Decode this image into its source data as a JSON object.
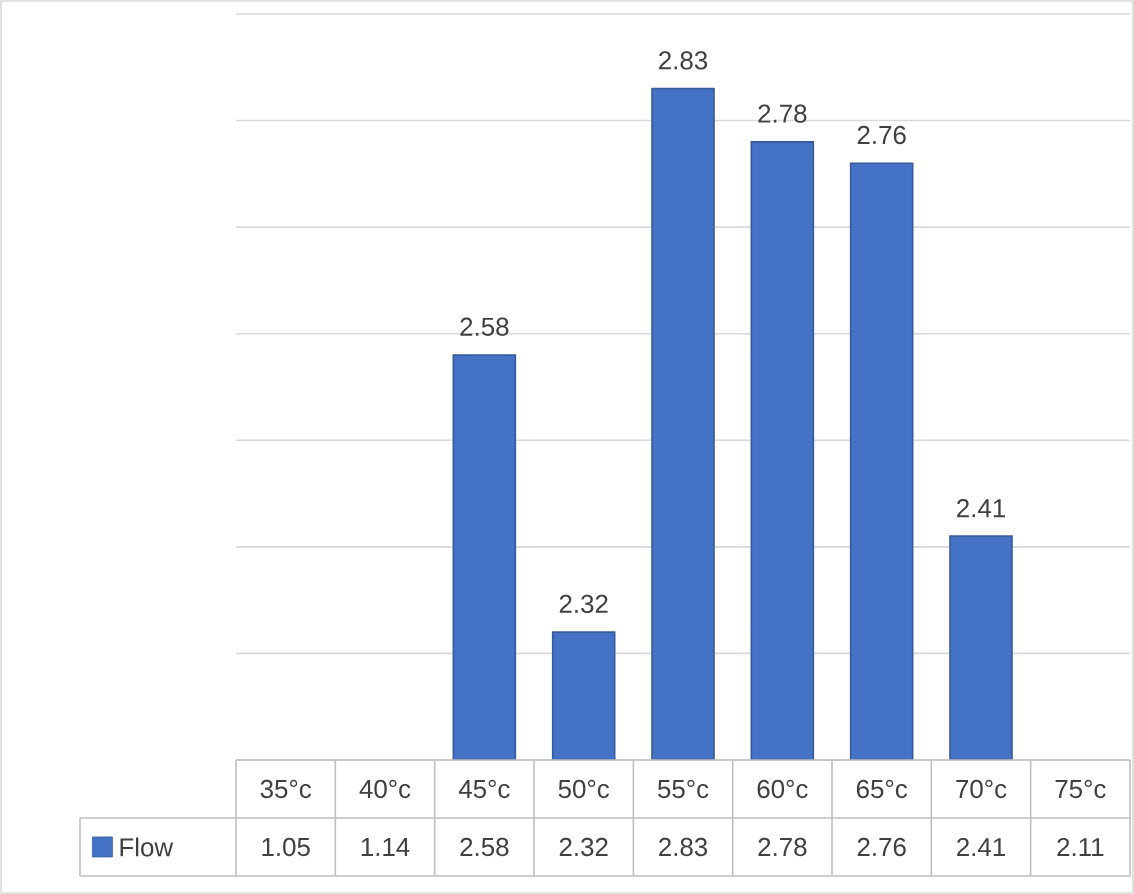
{
  "chart_data": {
    "type": "bar",
    "categories": [
      "35°c",
      "40°c",
      "45°c",
      "50°c",
      "55°c",
      "60°c",
      "65°c",
      "70°c",
      "75°c"
    ],
    "series": [
      {
        "name": "Flow",
        "color": "#4472c4",
        "values": [
          null,
          null,
          2.58,
          2.32,
          2.83,
          2.78,
          2.76,
          2.41,
          null
        ],
        "value_labels": [
          "1.05",
          "1.14",
          "2.58",
          "2.32",
          "2.83",
          "2.78",
          "2.76",
          "2.41",
          "2.11"
        ]
      }
    ],
    "ylim": [
      2.2,
      2.9
    ],
    "yticks": [
      {
        "value": 2.2,
        "label": null
      },
      {
        "value": 2.3,
        "label": null
      },
      {
        "value": 2.4,
        "label": null
      },
      {
        "value": 2.5,
        "label": null
      },
      {
        "value": 2.6,
        "label": null
      },
      {
        "value": 2.7,
        "label": null
      },
      {
        "value": 2.8,
        "label": null
      },
      {
        "value": 2.9,
        "label": null
      }
    ],
    "grid": "y",
    "legend": "bottom left"
  }
}
